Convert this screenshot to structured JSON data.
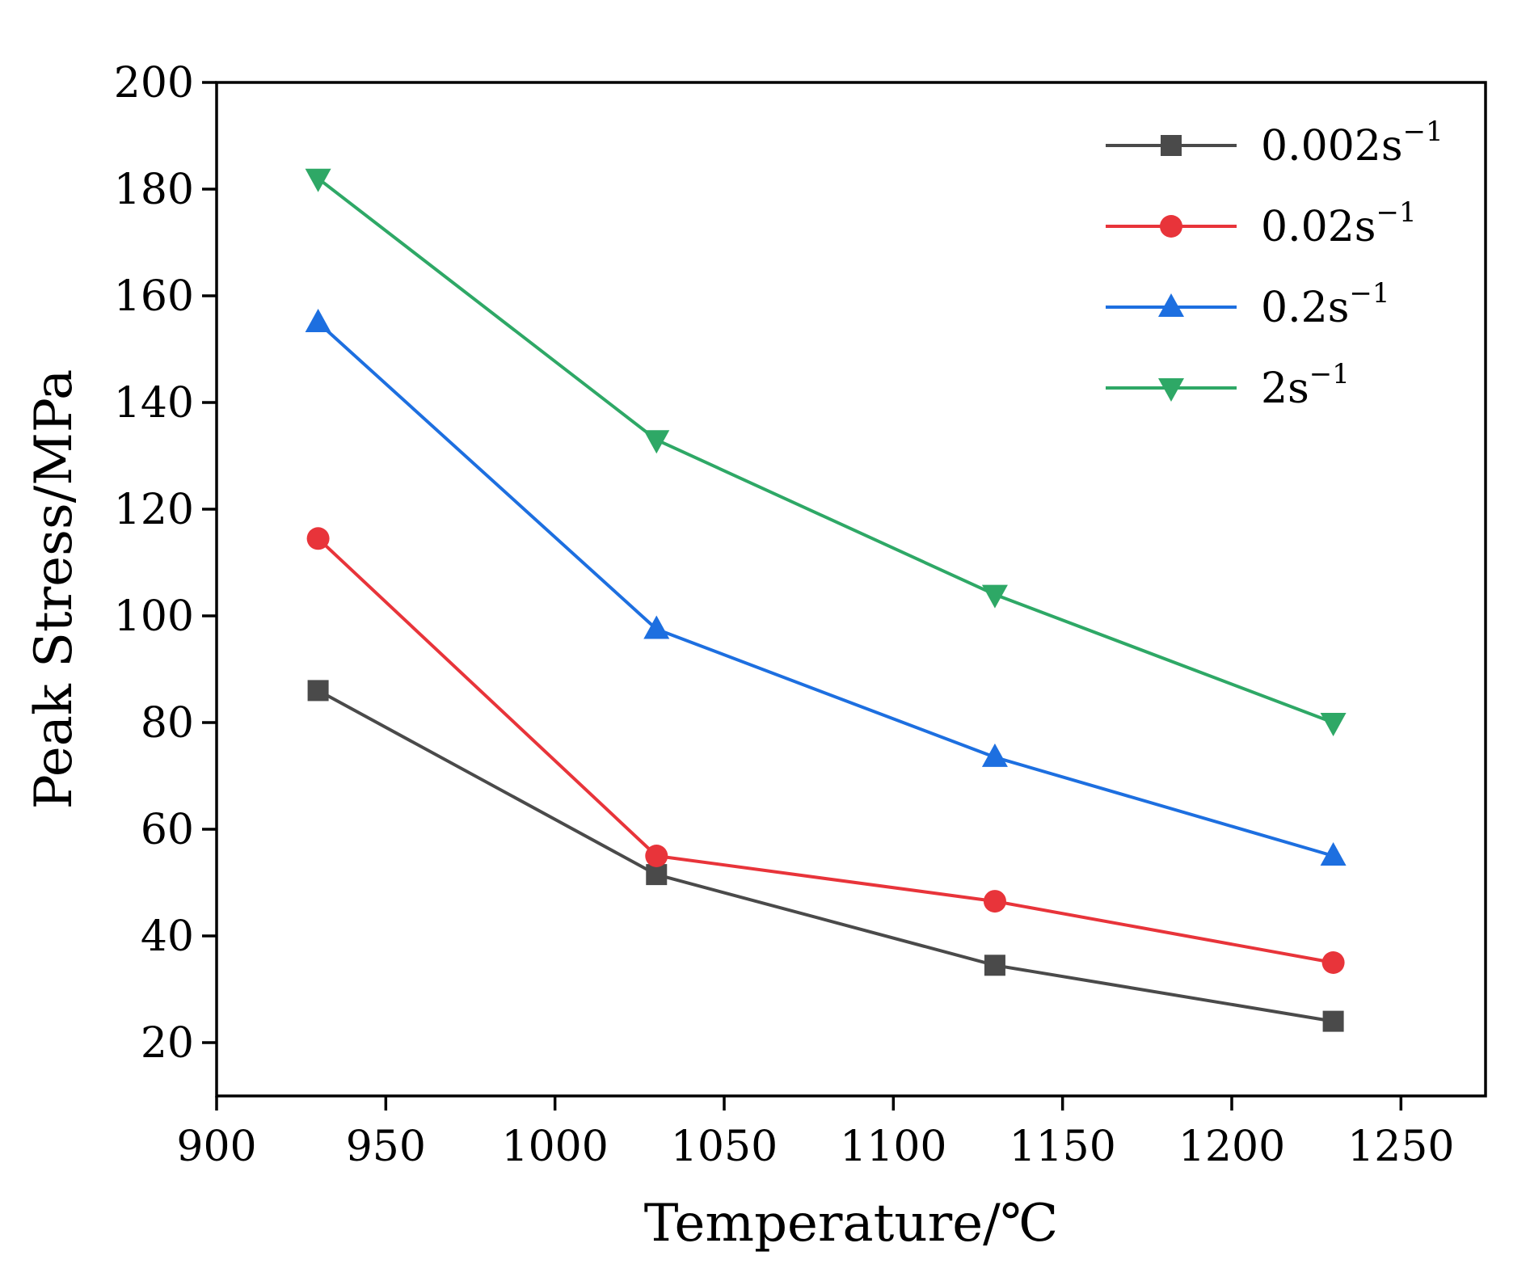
{
  "chart_data": {
    "type": "line",
    "title": "",
    "xlabel": "Temperature/℃",
    "ylabel": "Peak Stress/MPa",
    "x": [
      930,
      1030,
      1130,
      1230
    ],
    "xlim": [
      900,
      1275
    ],
    "ylim": [
      10,
      200
    ],
    "xticks": [
      900,
      950,
      1000,
      1050,
      1100,
      1150,
      1200,
      1250
    ],
    "yticks": [
      20,
      40,
      60,
      80,
      100,
      120,
      140,
      160,
      180,
      200
    ],
    "grid": false,
    "legend_position": "top-right",
    "series": [
      {
        "name": "0.002s",
        "superscript": "−1",
        "color": "#4a4a4a",
        "marker": "square",
        "values": [
          86,
          51.5,
          34.5,
          24
        ]
      },
      {
        "name": "0.02s",
        "superscript": "−1",
        "color": "#e8343a",
        "marker": "circle",
        "values": [
          114.5,
          55,
          46.5,
          35
        ]
      },
      {
        "name": "0.2s",
        "superscript": "−1",
        "color": "#1d6fe0",
        "marker": "triangle-up",
        "values": [
          155,
          97.5,
          73.5,
          55
        ]
      },
      {
        "name": "2s",
        "superscript": "−1",
        "color": "#2ea866",
        "marker": "triangle-down",
        "values": [
          182,
          133,
          104,
          80
        ]
      }
    ]
  }
}
